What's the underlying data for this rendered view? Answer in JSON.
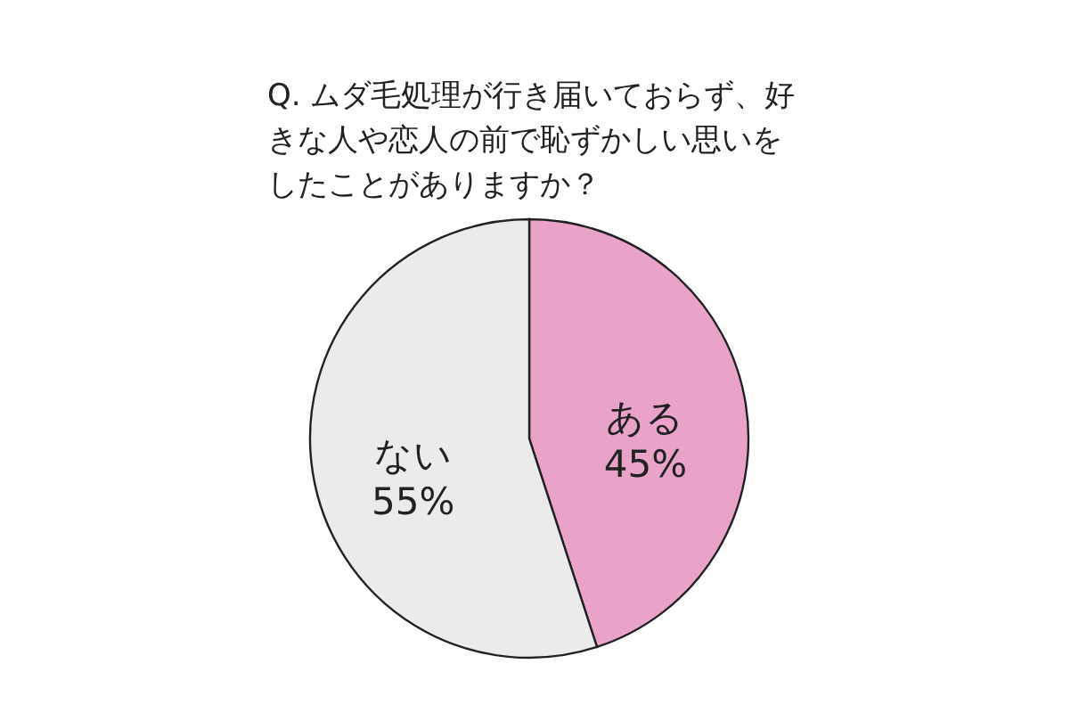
{
  "chart_data": {
    "type": "pie",
    "title": "Q. ムダ毛処理が行き届いておらず、好きな人や恋人の前で恥ずかしい思いをしたことがありますか？",
    "categories": [
      "ある",
      "ない"
    ],
    "values": [
      45,
      55
    ],
    "colors": [
      "#e9a3c9",
      "#ebebeb"
    ],
    "value_labels": [
      "45%",
      "55%"
    ]
  }
}
